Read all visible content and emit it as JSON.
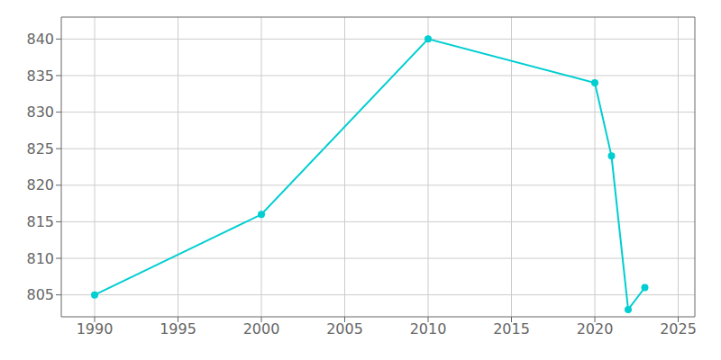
{
  "chart_data": {
    "type": "line",
    "x": [
      1990,
      2000,
      2010,
      2020,
      2021,
      2022,
      2023
    ],
    "values": [
      805,
      816,
      840,
      834,
      824,
      803,
      806
    ],
    "color": "#00CED1",
    "marker": "circle",
    "xlim": [
      1988,
      2026
    ],
    "ylim": [
      802,
      843
    ],
    "xticks": [
      1990,
      1995,
      2000,
      2005,
      2010,
      2015,
      2020,
      2025
    ],
    "yticks": [
      805,
      810,
      815,
      820,
      825,
      830,
      835,
      840
    ],
    "grid": true
  }
}
